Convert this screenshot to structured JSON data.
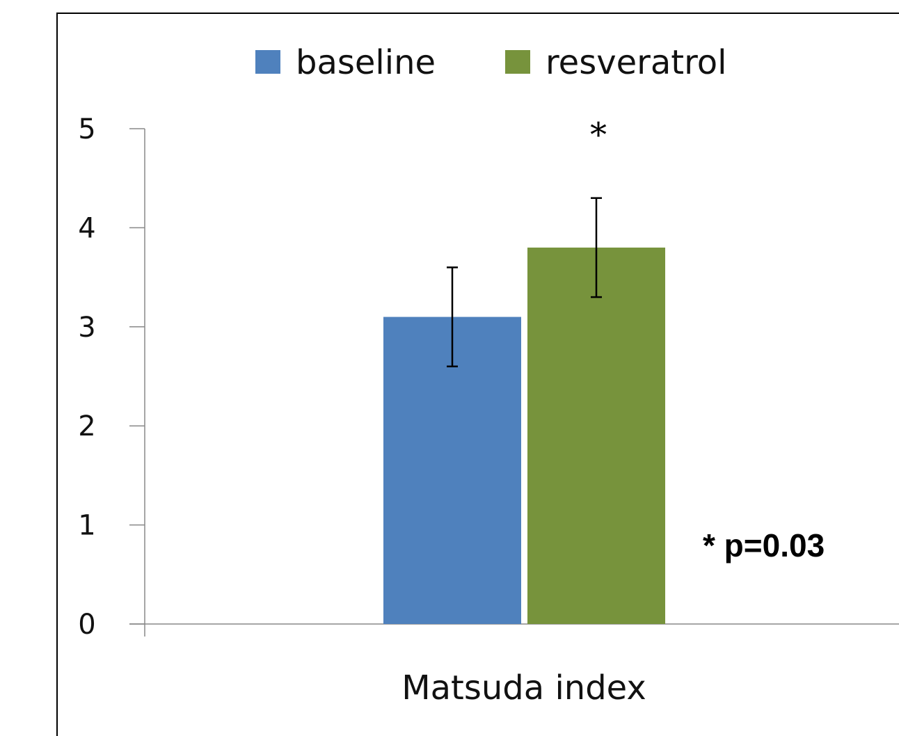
{
  "chart_data": {
    "type": "bar",
    "categories": [
      "Matsuda index"
    ],
    "series": [
      {
        "name": "baseline",
        "values": [
          3.1
        ],
        "error": [
          0.5
        ],
        "color": "#4F81BD"
      },
      {
        "name": "resveratrol",
        "values": [
          3.8
        ],
        "error": [
          0.5
        ],
        "color": "#77933C"
      }
    ],
    "y_ticks": [
      "0",
      "1",
      "2",
      "3",
      "4",
      "5"
    ],
    "ylim": [
      0,
      5
    ],
    "xlabel": "",
    "ylabel": "",
    "title": "",
    "grid": false,
    "legend_position": "top-center",
    "significance_marker": "*",
    "annotation": "* p=0.03"
  }
}
